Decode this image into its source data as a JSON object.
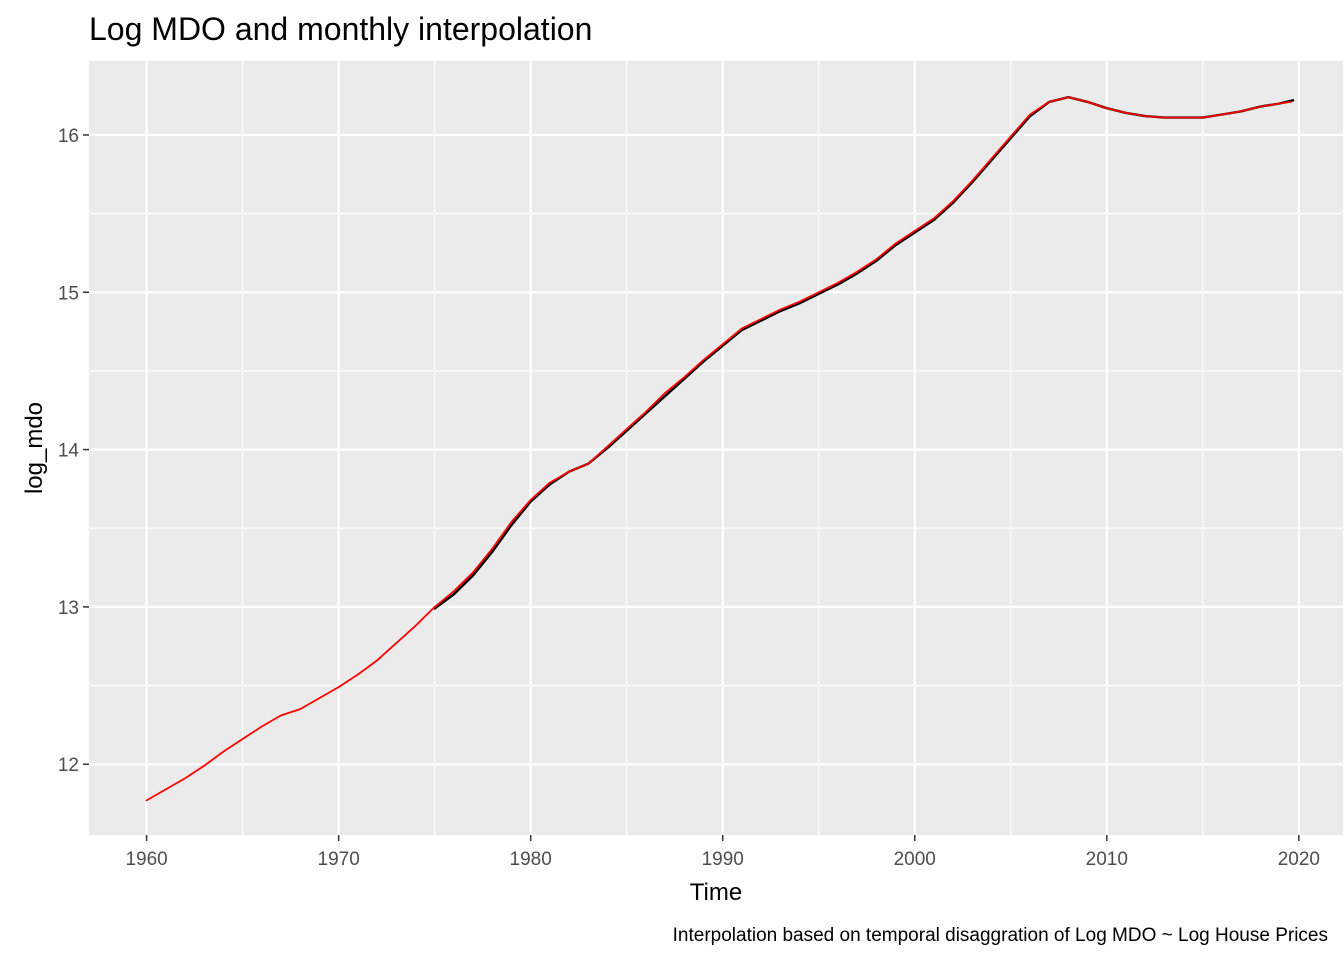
{
  "chart_data": {
    "type": "line",
    "title": "Log MDO and monthly interpolation",
    "xlabel": "Time",
    "ylabel": "log_mdo",
    "caption": "Interpolation based on temporal disaggration of Log MDO ~ Log House Prices",
    "xlim": [
      1957.0,
      2022.3
    ],
    "ylim": [
      11.55,
      16.47
    ],
    "x_ticks": [
      1960,
      1970,
      1980,
      1990,
      2000,
      2010,
      2020
    ],
    "y_ticks": [
      12,
      13,
      14,
      15,
      16
    ],
    "grid": true,
    "legend": "none",
    "colors": {
      "panel": "#ebebeb",
      "grid": "#ffffff",
      "series_black": "#000000",
      "series_red": "#ff0000"
    },
    "series": [
      {
        "color": "#000000",
        "x": [
          1975.0,
          1976.0,
          1977.0,
          1978.0,
          1979.0,
          1980.0,
          1981.0,
          1982.0,
          1983.0,
          1984.0,
          1985.0,
          1986.0,
          1987.0,
          1988.0,
          1989.0,
          1990.0,
          1991.0,
          1992.0,
          1993.0,
          1994.0,
          1995.0,
          1996.0,
          1997.0,
          1998.0,
          1999.0,
          2000.0,
          2001.0,
          2002.0,
          2003.0,
          2004.0,
          2005.0,
          2006.0,
          2007.0,
          2008.0,
          2009.0,
          2010.0,
          2011.0,
          2012.0,
          2013.0,
          2014.0,
          2015.0,
          2016.0,
          2017.0,
          2018.0,
          2019.0,
          2019.7
        ],
        "y": [
          12.99,
          13.08,
          13.2,
          13.35,
          13.52,
          13.67,
          13.78,
          13.86,
          13.91,
          14.01,
          14.12,
          14.23,
          14.34,
          14.45,
          14.56,
          14.66,
          14.76,
          14.82,
          14.88,
          14.93,
          14.99,
          15.05,
          15.12,
          15.2,
          15.3,
          15.38,
          15.46,
          15.57,
          15.7,
          15.84,
          15.98,
          16.12,
          16.21,
          16.24,
          16.21,
          16.17,
          16.14,
          16.12,
          16.11,
          16.11,
          16.11,
          16.13,
          16.15,
          16.18,
          16.2,
          16.22
        ]
      },
      {
        "color": "#ff0000",
        "x": [
          1960.0,
          1961.0,
          1962.0,
          1963.0,
          1964.0,
          1965.0,
          1966.0,
          1967.0,
          1968.0,
          1969.0,
          1970.0,
          1971.0,
          1972.0,
          1973.0,
          1974.0,
          1975.0,
          1976.0,
          1977.0,
          1978.0,
          1979.0,
          1980.0,
          1981.0,
          1982.0,
          1983.0,
          1984.0,
          1985.0,
          1986.0,
          1987.0,
          1988.0,
          1989.0,
          1990.0,
          1991.0,
          1992.0,
          1993.0,
          1994.0,
          1995.0,
          1996.0,
          1997.0,
          1998.0,
          1999.0,
          2000.0,
          2001.0,
          2002.0,
          2003.0,
          2004.0,
          2005.0,
          2006.0,
          2007.0,
          2008.0,
          2009.0,
          2010.0,
          2011.0,
          2012.0,
          2013.0,
          2014.0,
          2015.0,
          2016.0,
          2017.0,
          2018.0,
          2019.0,
          2019.6
        ],
        "y": [
          11.77,
          11.84,
          11.91,
          11.99,
          12.08,
          12.16,
          12.24,
          12.31,
          12.35,
          12.42,
          12.49,
          12.57,
          12.66,
          12.77,
          12.88,
          13.0,
          13.1,
          13.22,
          13.37,
          13.54,
          13.68,
          13.79,
          13.86,
          13.91,
          14.02,
          14.13,
          14.24,
          14.36,
          14.46,
          14.57,
          14.67,
          14.77,
          14.83,
          14.89,
          14.94,
          15.0,
          15.06,
          15.13,
          15.21,
          15.31,
          15.39,
          15.47,
          15.58,
          15.71,
          15.85,
          15.99,
          16.13,
          16.21,
          16.24,
          16.21,
          16.17,
          16.14,
          16.12,
          16.11,
          16.11,
          16.11,
          16.13,
          16.15,
          16.18,
          16.2,
          16.21
        ]
      }
    ]
  }
}
